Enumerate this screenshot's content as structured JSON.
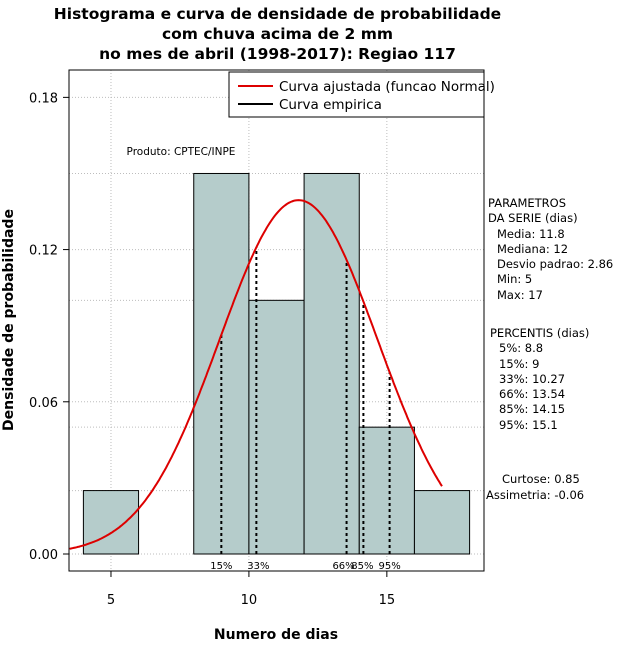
{
  "chart_data": {
    "type": "bar",
    "title_lines": [
      "Histograma e curva de densidade de probabilidade",
      "com chuva acima de 2 mm",
      "no mes de abril (1998-2017): Regiao 117"
    ],
    "xlabel": "Numero de dias",
    "ylabel": "Densidade de probabilidade",
    "xlim": [
      3.5,
      18.5
    ],
    "ylim": [
      0,
      0.19
    ],
    "x_ticks": [
      5,
      10,
      15
    ],
    "y_ticks": [
      0.0,
      0.06,
      0.12,
      0.18
    ],
    "y_tick_labels": [
      "0.00",
      "0.06",
      "0.12",
      "0.18"
    ],
    "grid": true,
    "bins": [
      {
        "start": 4,
        "end": 6,
        "density": 0.025
      },
      {
        "start": 6,
        "end": 8,
        "density": 0.0
      },
      {
        "start": 8,
        "end": 10,
        "density": 0.15
      },
      {
        "start": 10,
        "end": 12,
        "density": 0.1
      },
      {
        "start": 12,
        "end": 14,
        "density": 0.15
      },
      {
        "start": 14,
        "end": 16,
        "density": 0.05
      },
      {
        "start": 16,
        "end": 18,
        "density": 0.025
      }
    ],
    "bar_color": "#b5cccb",
    "curve_color": "#dd0000",
    "normal_fit": {
      "mean": 11.8,
      "sd": 2.86,
      "x_range": [
        3.2,
        17
      ]
    },
    "percentile_lines": [
      {
        "label": "15%",
        "x": 9
      },
      {
        "label": "33%",
        "x": 10.27
      },
      {
        "label": "66%",
        "x": 13.54
      },
      {
        "label": "85%",
        "x": 14.15
      },
      {
        "label": "95%",
        "x": 15.1
      }
    ],
    "legend": {
      "position": "top-right",
      "entries": [
        {
          "label": "Curva ajustada (funcao Normal)",
          "color": "#dd0000"
        },
        {
          "label": "Curva empirica",
          "color": "#000000"
        }
      ]
    },
    "annotation": "Produto: CPTEC/INPE"
  },
  "parametros": {
    "heading_1": "PARAMETROS",
    "heading_2": "DA SERIE (dias)",
    "media": "Media: 11.8",
    "mediana": "Mediana: 12",
    "desvio": "Desvio padrao: 2.86",
    "min": "Min: 5",
    "max": "Max: 17"
  },
  "percentis": {
    "heading": "PERCENTIS (dias)",
    "items": [
      "5%: 8.8",
      "15%: 9",
      "33%: 10.27",
      "66%: 13.54",
      "85%: 14.15",
      "95%: 15.1"
    ]
  },
  "forma": {
    "curtose": "Curtose: 0.85",
    "assimetria": "Assimetria: -0.06"
  }
}
